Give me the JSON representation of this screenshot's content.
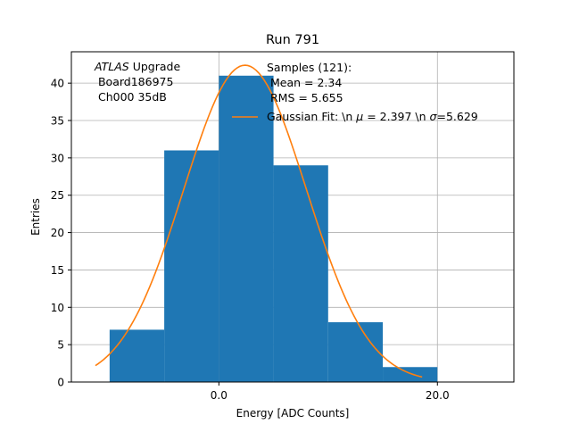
{
  "chart_data": {
    "type": "bar",
    "title": "Run 791",
    "xlabel": "Energy [ADC Counts]",
    "ylabel": "Entries",
    "xlim": [
      -13.5,
      27
    ],
    "ylim": [
      0,
      44.2
    ],
    "grid": true,
    "x_ticks": [
      {
        "value": 0,
        "label": "0.0"
      },
      {
        "value": 20,
        "label": "20.0"
      }
    ],
    "y_ticks": [
      {
        "value": 0,
        "label": "0"
      },
      {
        "value": 5,
        "label": "5"
      },
      {
        "value": 10,
        "label": "10"
      },
      {
        "value": 15,
        "label": "15"
      },
      {
        "value": 20,
        "label": "20"
      },
      {
        "value": 25,
        "label": "25"
      },
      {
        "value": 30,
        "label": "30"
      },
      {
        "value": 35,
        "label": "35"
      },
      {
        "value": 40,
        "label": "40"
      }
    ],
    "bins": [
      {
        "x0": -10,
        "x1": -5,
        "count": 7
      },
      {
        "x0": -5,
        "x1": 0,
        "count": 31
      },
      {
        "x0": 0,
        "x1": 5,
        "count": 41
      },
      {
        "x0": 5,
        "x1": 10,
        "count": 29
      },
      {
        "x0": 10,
        "x1": 15,
        "count": 8
      },
      {
        "x0": 15,
        "x1": 20,
        "count": 2
      }
    ],
    "fit": {
      "mu": 2.397,
      "sigma": 5.629,
      "amplitude": 42.4,
      "x_range": [
        -11.3,
        18.6
      ]
    },
    "annotation_lines": [
      "ATLAS Upgrade",
      " Board186975",
      " Ch000 35dB"
    ],
    "legend": {
      "stats_lines": [
        "Samples (121):",
        " Mean = 2.34",
        " RMS = 5.655"
      ],
      "fit_label": "Gaussian Fit: \\n μ = 2.397 \\n σ=5.629"
    },
    "colors": {
      "bars": "#1f77b4",
      "fit": "#ff7f0e",
      "grid": "#b0b0b0"
    }
  }
}
